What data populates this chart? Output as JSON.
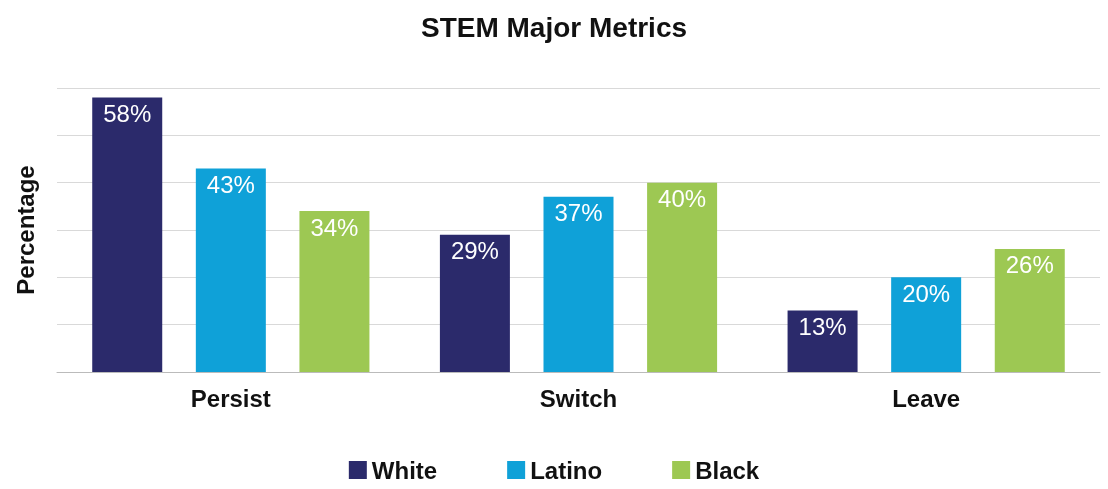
{
  "chart_data": {
    "type": "bar",
    "title": "STEM Major Metrics",
    "ylabel": "Percentage",
    "categories": [
      "Persist",
      "Switch",
      "Leave"
    ],
    "series": [
      {
        "name": "White",
        "color": "#2b2a6b",
        "values": [
          58,
          29,
          13
        ],
        "value_labels": [
          "58%",
          "29%",
          "13%"
        ]
      },
      {
        "name": "Latino",
        "color": "#0fa1d8",
        "values": [
          43,
          37,
          20
        ],
        "value_labels": [
          "43%",
          "37%",
          "20%"
        ]
      },
      {
        "name": "Black",
        "color": "#9dc853",
        "values": [
          34,
          40,
          26
        ],
        "value_labels": [
          "34%",
          "40%",
          "26%"
        ]
      }
    ],
    "ylim": [
      0,
      60
    ],
    "yticks": [
      {
        "value": 0,
        "label": null
      },
      {
        "value": 10,
        "label": null
      },
      {
        "value": 20,
        "label": null
      },
      {
        "value": 30,
        "label": null
      },
      {
        "value": 40,
        "label": null
      },
      {
        "value": 50,
        "label": null
      },
      {
        "value": 60,
        "label": null
      }
    ],
    "tick_labels": "x",
    "grid": "y",
    "legend": "bottom"
  }
}
